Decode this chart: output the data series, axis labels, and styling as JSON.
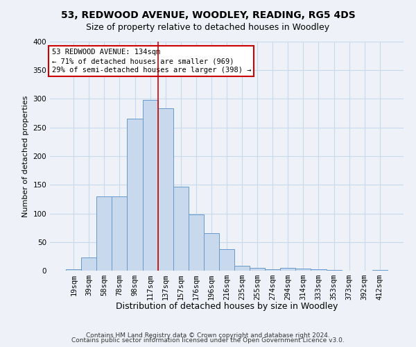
{
  "title": "53, REDWOOD AVENUE, WOODLEY, READING, RG5 4DS",
  "subtitle": "Size of property relative to detached houses in Woodley",
  "xlabel": "Distribution of detached houses by size in Woodley",
  "ylabel": "Number of detached properties",
  "footer_line1": "Contains HM Land Registry data © Crown copyright and database right 2024.",
  "footer_line2": "Contains public sector information licensed under the Open Government Licence v3.0.",
  "categories": [
    "19sqm",
    "39sqm",
    "58sqm",
    "78sqm",
    "98sqm",
    "117sqm",
    "137sqm",
    "157sqm",
    "176sqm",
    "196sqm",
    "216sqm",
    "235sqm",
    "255sqm",
    "274sqm",
    "294sqm",
    "314sqm",
    "333sqm",
    "353sqm",
    "373sqm",
    "392sqm",
    "412sqm"
  ],
  "values": [
    2,
    23,
    130,
    130,
    265,
    298,
    284,
    147,
    98,
    65,
    38,
    8,
    5,
    2,
    5,
    4,
    2,
    1,
    0,
    0,
    1
  ],
  "bar_color": "#c8d8ed",
  "bar_edge_color": "#6699cc",
  "grid_color": "#c8d8ed",
  "background_color": "#eef2f8",
  "vline_x_index": 6,
  "vline_color": "#cc0000",
  "annotation_line1": "53 REDWOOD AVENUE: 134sqm",
  "annotation_line2": "← 71% of detached houses are smaller (969)",
  "annotation_line3": "29% of semi-detached houses are larger (398) →",
  "annotation_box_color": "#ffffff",
  "annotation_box_edge_color": "#cc0000",
  "ylim": [
    0,
    400
  ],
  "yticks": [
    0,
    50,
    100,
    150,
    200,
    250,
    300,
    350,
    400
  ],
  "title_fontsize": 10,
  "subtitle_fontsize": 9,
  "xlabel_fontsize": 9,
  "ylabel_fontsize": 8,
  "tick_fontsize": 7.5,
  "annotation_fontsize": 7.5,
  "footer_fontsize": 6.5
}
